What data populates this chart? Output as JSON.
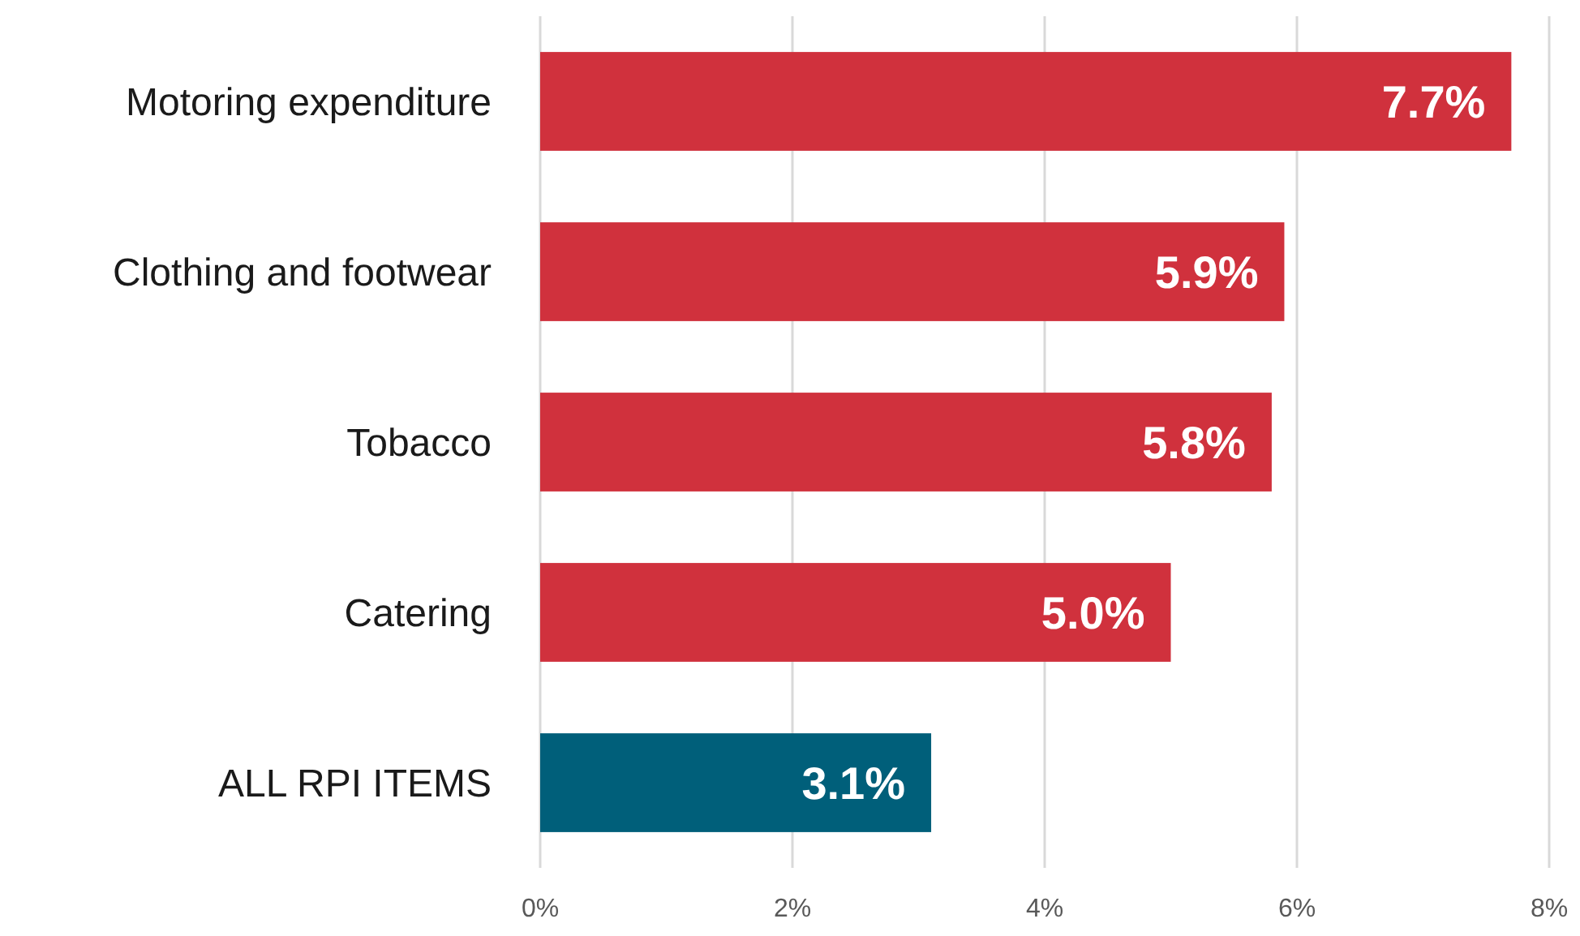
{
  "chart_data": {
    "type": "bar",
    "orientation": "horizontal",
    "categories": [
      "Motoring expenditure",
      "Clothing and footwear",
      "Tobacco",
      "Catering",
      "ALL RPI ITEMS"
    ],
    "values": [
      7.7,
      5.9,
      5.8,
      5.0,
      3.1
    ],
    "colors": [
      "#d0313d",
      "#d0313d",
      "#d0313d",
      "#d0313d",
      "#005f7a"
    ],
    "value_labels": [
      "7.7%",
      "5.9%",
      "5.8%",
      "5.0%",
      "3.1%"
    ],
    "xlim": [
      0,
      8
    ],
    "xticks": [
      {
        "value": 0,
        "label": "0%"
      },
      {
        "value": 2,
        "label": "2%"
      },
      {
        "value": 4,
        "label": "4%"
      },
      {
        "value": 6,
        "label": "6%"
      },
      {
        "value": 8,
        "label": "8%"
      }
    ],
    "grid": "x"
  }
}
